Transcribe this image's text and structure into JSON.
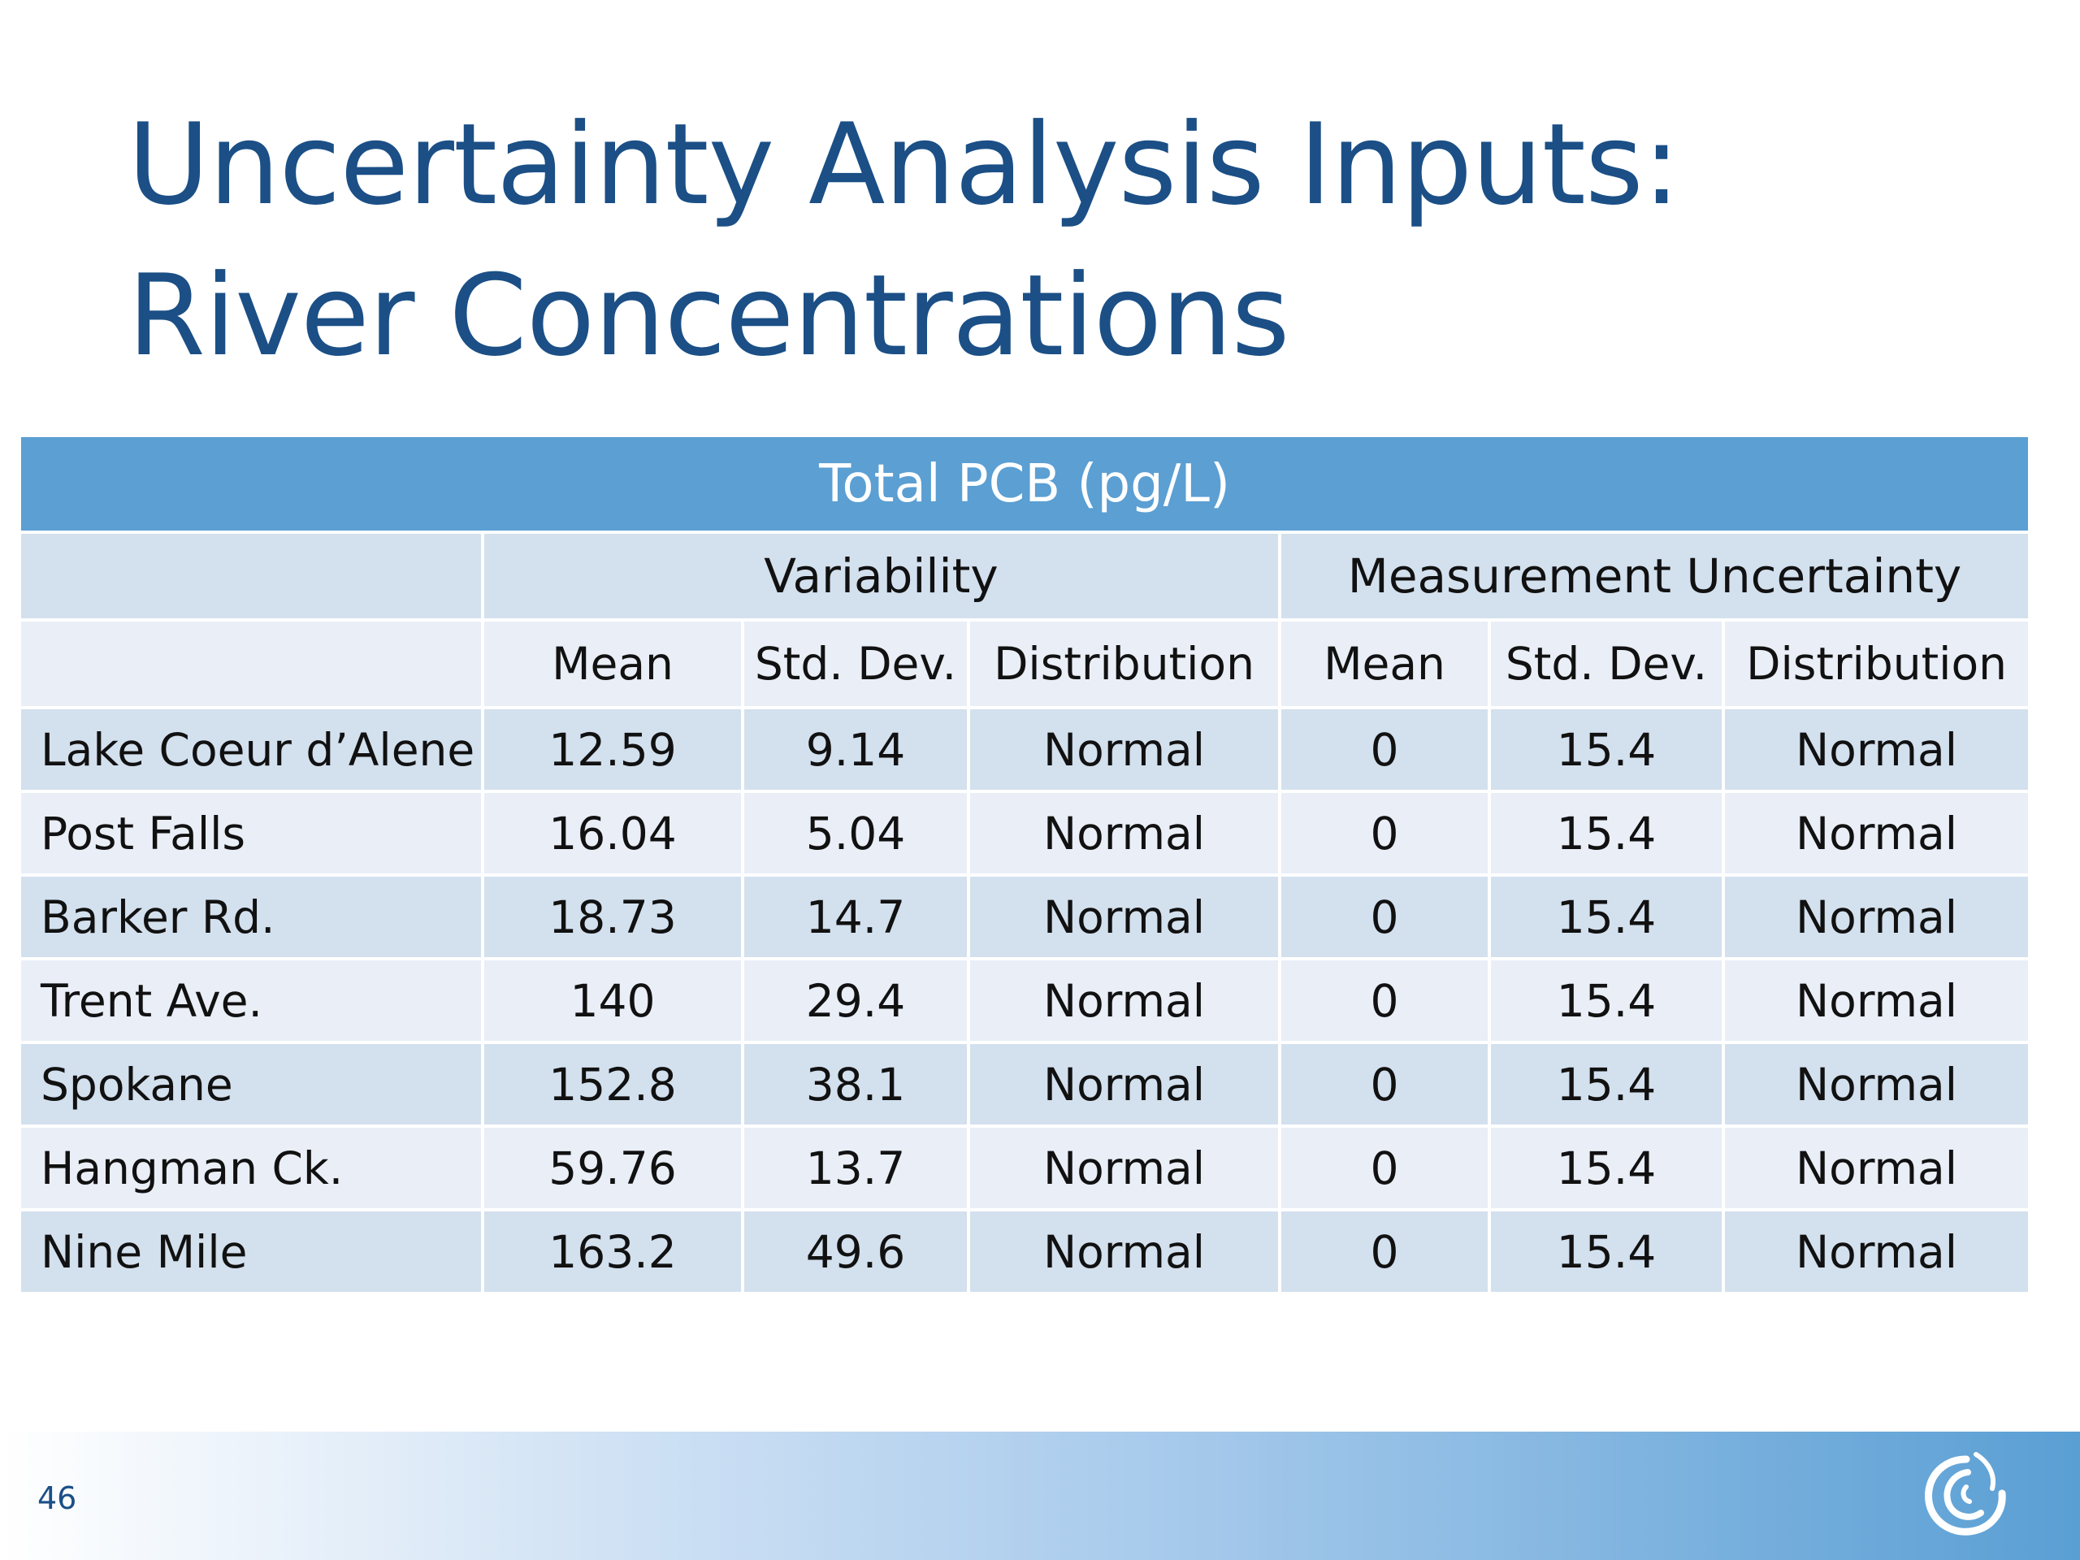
{
  "slide": {
    "title_line1": "Uncertainty Analysis Inputs:",
    "title_line2": "River Concentrations",
    "page_number": "46",
    "logo_icon": "swirl-logo-icon"
  },
  "table": {
    "header": "Total PCB (pg/L)",
    "groups": [
      "Variability",
      "Measurement Uncertainty"
    ],
    "subheaders": [
      "Mean",
      "Std. Dev.",
      "Distribution",
      "Mean",
      "Std. Dev.",
      "Distribution"
    ],
    "rows": [
      {
        "location": "Lake Coeur d’Alene",
        "var_mean": "12.59",
        "var_sd": "9.14",
        "var_dist": "Normal",
        "mu_mean": "0",
        "mu_sd": "15.4",
        "mu_dist": "Normal"
      },
      {
        "location": "Post Falls",
        "var_mean": "16.04",
        "var_sd": "5.04",
        "var_dist": "Normal",
        "mu_mean": "0",
        "mu_sd": "15.4",
        "mu_dist": "Normal"
      },
      {
        "location": "Barker Rd.",
        "var_mean": "18.73",
        "var_sd": "14.7",
        "var_dist": "Normal",
        "mu_mean": "0",
        "mu_sd": "15.4",
        "mu_dist": "Normal"
      },
      {
        "location": "Trent Ave.",
        "var_mean": "140",
        "var_sd": "29.4",
        "var_dist": "Normal",
        "mu_mean": "0",
        "mu_sd": "15.4",
        "mu_dist": "Normal"
      },
      {
        "location": "Spokane",
        "var_mean": "152.8",
        "var_sd": "38.1",
        "var_dist": "Normal",
        "mu_mean": "0",
        "mu_sd": "15.4",
        "mu_dist": "Normal"
      },
      {
        "location": "Hangman Ck.",
        "var_mean": "59.76",
        "var_sd": "13.7",
        "var_dist": "Normal",
        "mu_mean": "0",
        "mu_sd": "15.4",
        "mu_dist": "Normal"
      },
      {
        "location": "Nine Mile",
        "var_mean": "163.2",
        "var_sd": "49.6",
        "var_dist": "Normal",
        "mu_mean": "0",
        "mu_sd": "15.4",
        "mu_dist": "Normal"
      }
    ]
  },
  "colors": {
    "title": "#1b4f86",
    "header_bg": "#5b9fd3",
    "band_dark": "#d3e0ee",
    "band_light": "#e9eef7"
  }
}
